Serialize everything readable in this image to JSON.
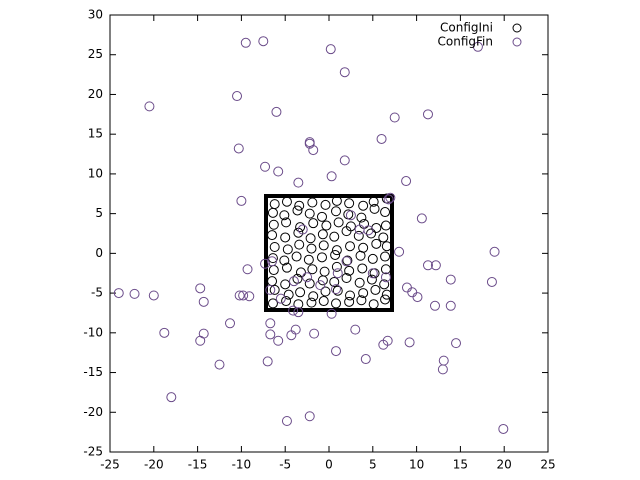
{
  "chart_data": {
    "type": "scatter",
    "xlim": [
      -25,
      25
    ],
    "ylim": [
      -25,
      30
    ],
    "xticks": [
      -25,
      -20,
      -15,
      -10,
      -5,
      0,
      5,
      10,
      15,
      20,
      25
    ],
    "yticks": [
      -25,
      -20,
      -15,
      -10,
      -5,
      0,
      5,
      10,
      15,
      20,
      25,
      30
    ],
    "legend": "top-right",
    "series": [
      {
        "name": "ConfigIni",
        "color": "#000000",
        "x": [
          -6.4,
          -4.9,
          -3.5,
          -2.0,
          -0.6,
          0.8,
          2.3,
          3.7,
          5.1,
          6.4,
          -6.2,
          -4.6,
          -3.3,
          -1.8,
          -0.4,
          1.0,
          2.4,
          3.9,
          5.3,
          6.6,
          -6.5,
          -5.0,
          -3.6,
          -2.2,
          -0.7,
          0.6,
          2.0,
          3.5,
          4.9,
          6.3,
          -6.3,
          -4.8,
          -3.2,
          -1.9,
          -0.5,
          0.9,
          2.3,
          3.8,
          5.2,
          6.5,
          -6.4,
          -5.1,
          -3.7,
          -2.3,
          -0.8,
          0.7,
          2.1,
          3.6,
          5.0,
          6.4,
          -6.2,
          -4.7,
          -3.4,
          -2.0,
          -0.6,
          0.9,
          2.4,
          3.9,
          5.4,
          6.6,
          -6.5,
          -5.0,
          -3.5,
          -2.1,
          -0.7,
          0.6,
          2.0,
          3.4,
          4.8,
          6.2,
          -6.3,
          -4.9,
          -3.3,
          -1.8,
          -0.3,
          1.1,
          2.5,
          4.0,
          5.4,
          6.5,
          -6.4,
          -5.1,
          -3.6,
          -2.2,
          -0.8,
          0.8,
          2.2,
          3.7,
          5.2,
          6.4,
          -6.2,
          -4.8,
          -3.4,
          -1.9,
          -0.4,
          0.9,
          2.3,
          3.9,
          5.1,
          6.6
        ],
        "y": [
          -6.3,
          -6.0,
          -6.4,
          -6.2,
          -6.0,
          -6.3,
          -6.1,
          -5.9,
          -6.4,
          -5.8,
          -4.6,
          -5.2,
          -4.9,
          -5.4,
          -4.8,
          -4.7,
          -5.3,
          -5.0,
          -4.6,
          -5.2,
          -3.5,
          -3.9,
          -3.2,
          -3.8,
          -3.4,
          -3.6,
          -3.1,
          -3.7,
          -3.3,
          -3.9,
          -2.1,
          -1.8,
          -2.4,
          -2.0,
          -2.3,
          -1.7,
          -2.2,
          -1.9,
          -2.5,
          -2.0,
          -0.6,
          -0.9,
          -0.4,
          -0.8,
          -0.5,
          -0.2,
          -0.9,
          -0.3,
          -0.7,
          -0.4,
          0.8,
          0.5,
          1.1,
          0.6,
          1.0,
          0.4,
          0.9,
          0.7,
          1.2,
          0.9,
          2.3,
          2.0,
          2.6,
          1.9,
          2.4,
          2.1,
          2.8,
          2.2,
          2.5,
          2.0,
          3.6,
          3.9,
          3.3,
          3.8,
          3.5,
          3.9,
          3.4,
          3.7,
          3.2,
          3.5,
          5.1,
          4.8,
          5.4,
          5.0,
          4.6,
          5.3,
          4.9,
          4.5,
          5.6,
          5.2,
          6.2,
          6.5,
          6.0,
          6.4,
          6.1,
          6.6,
          6.3,
          6.0,
          6.5,
          6.9
        ]
      },
      {
        "name": "ConfigFin",
        "color": "#6b4c8a",
        "x": [
          -9.5,
          -7.5,
          0.2,
          1.8,
          17,
          -20.5,
          -10.5,
          -6,
          7.5,
          11.3,
          -2.2,
          -2.2,
          -1.8,
          6,
          -10.3,
          -7.3,
          -5.8,
          1.8,
          -3.5,
          0.3,
          8.8,
          -10,
          10.6,
          7,
          6.8,
          8,
          18.9,
          -9.3,
          11.3,
          12.2,
          13.9,
          18.6,
          -24,
          -22.2,
          -20,
          -14.7,
          -14.3,
          -10.2,
          -9.8,
          -9.1,
          8.9,
          9.5,
          10.1,
          12.1,
          13.9,
          -11.3,
          -18.8,
          -14.3,
          -14.7,
          -6.7,
          -6.7,
          -3.8,
          -4.3,
          -1.7,
          3,
          0.8,
          4.2,
          6.2,
          6.7,
          9.2,
          14.5,
          13.1,
          13,
          -12.5,
          -7,
          -18,
          -4.8,
          -2.2,
          19.9,
          -5.5,
          -4.1,
          -3.5,
          0.3,
          -7.3,
          -6.5,
          -6.7,
          -5.8,
          -1,
          2,
          3.5,
          4.5,
          -3,
          1,
          5,
          6.5,
          0.8,
          -4,
          2.5,
          -2.5
        ],
        "y": [
          26.5,
          26.7,
          25.7,
          22.8,
          26,
          18.5,
          19.8,
          17.8,
          17.1,
          17.5,
          14,
          13.8,
          13,
          14.4,
          13.2,
          10.9,
          10.3,
          11.7,
          8.9,
          9.7,
          9.1,
          6.6,
          4.4,
          7,
          6.8,
          0.2,
          0.2,
          -2,
          -1.5,
          -1.5,
          -3.3,
          -3.6,
          -5,
          -5.1,
          -5.3,
          -4.4,
          -6.1,
          -5.3,
          -5.3,
          -5.4,
          -4.3,
          -4.9,
          -5.5,
          -6.6,
          -6.6,
          -8.8,
          -10,
          -10.1,
          -11,
          -8.8,
          -10.2,
          -9.6,
          -10.3,
          -10.1,
          -9.6,
          -12.3,
          -13.3,
          -11.5,
          -11,
          -11.2,
          -11.3,
          -13.5,
          -14.6,
          -14,
          -13.6,
          -18.1,
          -21.1,
          -20.5,
          -22.1,
          -5.7,
          -7.2,
          -7.4,
          -7.6,
          -1.3,
          -1,
          -4.6,
          -11,
          -4,
          -1,
          3,
          2.9,
          3,
          -2.5,
          -2.5,
          -3,
          -4.5,
          -3.5,
          4.8,
          -3
        ]
      }
    ]
  }
}
